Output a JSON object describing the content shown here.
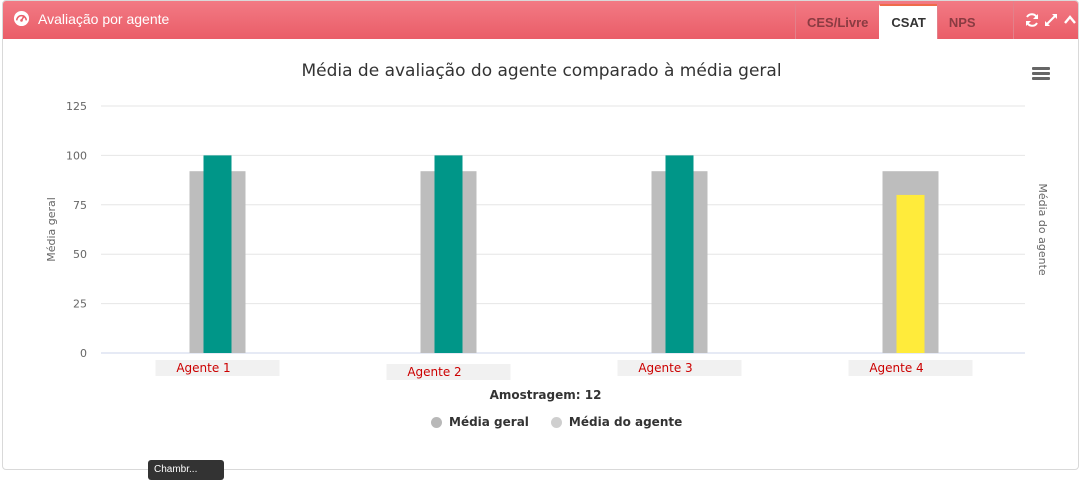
{
  "header": {
    "title": "Avaliação por agente",
    "icon": "gauge-icon",
    "tabs": [
      {
        "label": "CES/Livre",
        "active": false
      },
      {
        "label": "CSAT",
        "active": true
      },
      {
        "label": "NPS",
        "active": false
      }
    ],
    "tools": [
      "refresh-icon",
      "expand-icon",
      "collapse-icon"
    ],
    "colors": {
      "header": "#ea5d68",
      "active_tab_border": "#ef6b4a"
    }
  },
  "chart_data": {
    "type": "bar",
    "title": "Média de avaliação do agente comparado à média geral",
    "categories": [
      "Agente 1",
      "Agente 2",
      "Agente 3",
      "Agente 4"
    ],
    "series": [
      {
        "name": "Média geral",
        "values": [
          92,
          92,
          92,
          92
        ],
        "color": "#bdbdbd"
      },
      {
        "name": "Média do agente",
        "values": [
          100,
          100,
          100,
          80
        ],
        "colors": [
          "#009688",
          "#009688",
          "#009688",
          "#ffeb3b"
        ]
      }
    ],
    "ylabel": "Média geral",
    "y2label": "Média do agente",
    "xlabel": "Amostragem: 12",
    "yticks": [
      "0",
      "25",
      "50",
      "75",
      "100",
      "125"
    ],
    "ylim": [
      0,
      125
    ],
    "legend_position": "bottom",
    "category_label_color": "#cc0000",
    "grid": true
  },
  "legend": [
    {
      "label": "Média geral",
      "color": "#b8b8b8"
    },
    {
      "label": "Média do agente",
      "color": "#cfcfcf"
    }
  ],
  "tooltip": {
    "text": "Chambr..."
  }
}
